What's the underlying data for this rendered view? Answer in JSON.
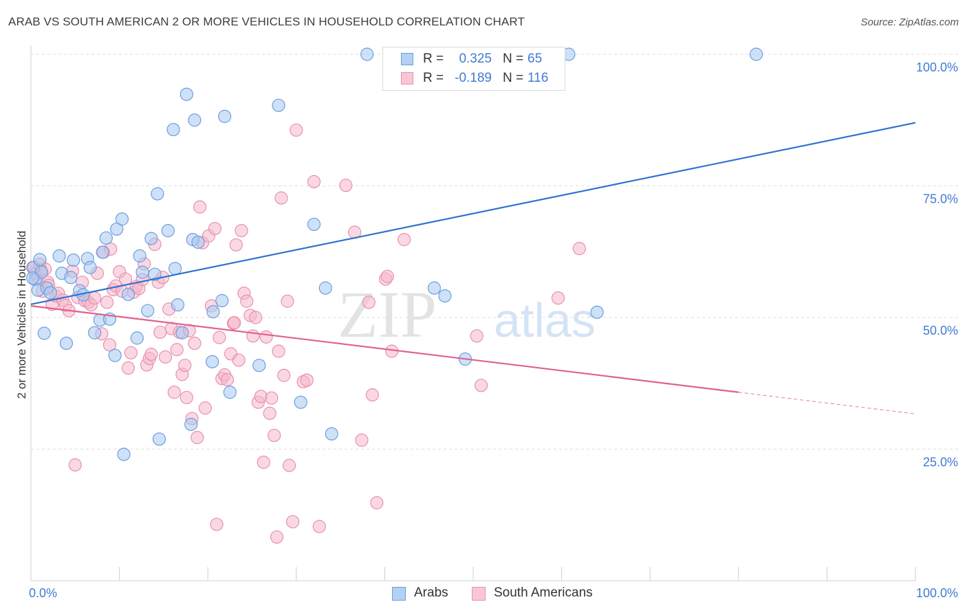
{
  "title": "ARAB VS SOUTH AMERICAN 2 OR MORE VEHICLES IN HOUSEHOLD CORRELATION CHART",
  "source": "Source: ZipAtlas.com",
  "watermark": {
    "zip": "ZIP",
    "atlas": "atlas"
  },
  "legend": {
    "arabs": {
      "r_label": "R =",
      "r_value": "0.325",
      "n_label": "N =",
      "n_value": "65"
    },
    "south_americans": {
      "r_label": "R =",
      "r_value": "-0.189",
      "n_label": "N =",
      "n_value": "116"
    }
  },
  "bottom_legend": {
    "arabs": "Arabs",
    "south_americans": "South Americans"
  },
  "colors": {
    "arabs_fill": "#a8c8f0",
    "arabs_stroke": "#6a9ee0",
    "arabs_line": "#2f72d0",
    "sa_fill": "#f6b8cc",
    "sa_stroke": "#e890ac",
    "sa_line": "#e0608e",
    "axis_text": "#3f7bd0"
  },
  "chart_data": {
    "type": "scatter",
    "title": "ARAB VS SOUTH AMERICAN 2 OR MORE VEHICLES IN HOUSEHOLD CORRELATION CHART",
    "xlabel": "",
    "ylabel": "2 or more Vehicles in Household",
    "xlim": [
      0,
      100
    ],
    "ylim": [
      0,
      100
    ],
    "x_tick_labels": [
      "0.0%",
      "100.0%"
    ],
    "y_tick_labels": [
      "100.0%",
      "75.0%",
      "50.0%",
      "25.0%"
    ],
    "y_ticks": [
      100,
      75,
      50,
      25
    ],
    "grid": true,
    "legend_position": "top-center",
    "series": [
      {
        "name": "Arabs",
        "r": 0.325,
        "n": 65,
        "trend": {
          "x": [
            0,
            100
          ],
          "y": [
            52.5,
            87
          ]
        },
        "points": [
          [
            0.3,
            59.5
          ],
          [
            0.5,
            57.2
          ],
          [
            0.8,
            55.2
          ],
          [
            1.0,
            61.0
          ],
          [
            1.2,
            58.6
          ],
          [
            1.5,
            47.0
          ],
          [
            1.8,
            55.6
          ],
          [
            2.2,
            54.7
          ],
          [
            3.2,
            61.7
          ],
          [
            3.5,
            58.4
          ],
          [
            4.0,
            45.1
          ],
          [
            4.5,
            57.6
          ],
          [
            4.8,
            60.9
          ],
          [
            5.5,
            55.1
          ],
          [
            5.9,
            54.3
          ],
          [
            6.4,
            61.2
          ],
          [
            6.7,
            59.5
          ],
          [
            7.2,
            47.1
          ],
          [
            7.8,
            49.5
          ],
          [
            8.1,
            62.4
          ],
          [
            8.5,
            65.1
          ],
          [
            8.9,
            49.7
          ],
          [
            9.5,
            42.8
          ],
          [
            9.7,
            66.8
          ],
          [
            10.3,
            68.7
          ],
          [
            10.5,
            24.0
          ],
          [
            11.0,
            54.4
          ],
          [
            12.0,
            46.1
          ],
          [
            12.3,
            61.7
          ],
          [
            12.6,
            58.6
          ],
          [
            13.2,
            51.3
          ],
          [
            13.6,
            65.0
          ],
          [
            14.0,
            58.2
          ],
          [
            14.3,
            73.5
          ],
          [
            14.5,
            26.9
          ],
          [
            15.5,
            66.5
          ],
          [
            16.1,
            85.7
          ],
          [
            16.3,
            59.3
          ],
          [
            16.6,
            52.4
          ],
          [
            17.1,
            47.1
          ],
          [
            17.6,
            92.4
          ],
          [
            18.1,
            29.7
          ],
          [
            18.3,
            64.8
          ],
          [
            18.5,
            87.5
          ],
          [
            18.9,
            64.3
          ],
          [
            20.5,
            41.6
          ],
          [
            20.6,
            51.1
          ],
          [
            21.6,
            53.2
          ],
          [
            21.9,
            88.2
          ],
          [
            22.5,
            35.8
          ],
          [
            25.8,
            40.9
          ],
          [
            28.0,
            90.3
          ],
          [
            30.5,
            33.9
          ],
          [
            32.0,
            67.7
          ],
          [
            33.3,
            55.6
          ],
          [
            34.0,
            27.9
          ],
          [
            38.0,
            100.0
          ],
          [
            45.6,
            55.6
          ],
          [
            46.8,
            54.1
          ],
          [
            47.5,
            100.0
          ],
          [
            49.1,
            42.1
          ],
          [
            60.8,
            100.0
          ],
          [
            64.0,
            51.0
          ],
          [
            82.0,
            100.0
          ],
          [
            0.2,
            57.5
          ]
        ]
      },
      {
        "name": "South Americans",
        "r": -0.189,
        "n": 116,
        "trend": {
          "x": [
            0,
            80
          ],
          "y": [
            52.2,
            35.8
          ]
        },
        "trend_dashed": {
          "x": [
            80,
            100
          ],
          "y": [
            35.8,
            31.7
          ]
        },
        "points": [
          [
            0.2,
            59.5
          ],
          [
            0.5,
            58.3
          ],
          [
            0.8,
            57.6
          ],
          [
            1.0,
            60.1
          ],
          [
            1.3,
            55.0
          ],
          [
            1.6,
            59.2
          ],
          [
            1.9,
            56.7
          ],
          [
            2.4,
            52.5
          ],
          [
            2.8,
            54.1
          ],
          [
            3.1,
            54.6
          ],
          [
            3.6,
            53.3
          ],
          [
            3.9,
            52.3
          ],
          [
            4.3,
            51.3
          ],
          [
            4.7,
            58.8
          ],
          [
            5.0,
            22.0
          ],
          [
            5.3,
            53.8
          ],
          [
            5.8,
            56.7
          ],
          [
            6.1,
            53.2
          ],
          [
            6.5,
            52.9
          ],
          [
            6.8,
            52.4
          ],
          [
            7.2,
            53.7
          ],
          [
            7.5,
            58.4
          ],
          [
            8.0,
            46.9
          ],
          [
            8.2,
            62.4
          ],
          [
            8.6,
            52.9
          ],
          [
            8.9,
            44.8
          ],
          [
            9.3,
            55.3
          ],
          [
            9.6,
            56.0
          ],
          [
            10.0,
            58.7
          ],
          [
            10.3,
            55.0
          ],
          [
            10.7,
            57.3
          ],
          [
            11.0,
            40.4
          ],
          [
            11.3,
            43.3
          ],
          [
            11.6,
            54.8
          ],
          [
            11.9,
            55.9
          ],
          [
            12.2,
            55.5
          ],
          [
            12.6,
            57.2
          ],
          [
            12.8,
            60.2
          ],
          [
            13.1,
            41.0
          ],
          [
            13.4,
            42.2
          ],
          [
            13.6,
            43.0
          ],
          [
            14.0,
            63.9
          ],
          [
            14.4,
            56.7
          ],
          [
            14.6,
            47.2
          ],
          [
            14.9,
            57.6
          ],
          [
            15.2,
            42.5
          ],
          [
            15.6,
            51.6
          ],
          [
            15.9,
            47.9
          ],
          [
            16.2,
            35.8
          ],
          [
            16.5,
            43.9
          ],
          [
            16.8,
            47.2
          ],
          [
            17.1,
            39.2
          ],
          [
            17.4,
            40.9
          ],
          [
            17.6,
            34.8
          ],
          [
            17.9,
            47.5
          ],
          [
            18.2,
            30.8
          ],
          [
            18.5,
            45.1
          ],
          [
            18.8,
            27.2
          ],
          [
            19.1,
            71.0
          ],
          [
            19.4,
            64.2
          ],
          [
            19.7,
            32.8
          ],
          [
            20.1,
            65.5
          ],
          [
            20.4,
            52.2
          ],
          [
            20.8,
            66.9
          ],
          [
            21.0,
            10.7
          ],
          [
            21.3,
            46.2
          ],
          [
            21.6,
            38.4
          ],
          [
            21.9,
            39.1
          ],
          [
            22.2,
            38.2
          ],
          [
            22.6,
            43.1
          ],
          [
            22.9,
            48.9
          ],
          [
            23.2,
            63.8
          ],
          [
            23.5,
            41.9
          ],
          [
            23.8,
            66.5
          ],
          [
            24.1,
            54.6
          ],
          [
            24.4,
            53.1
          ],
          [
            24.8,
            50.4
          ],
          [
            25.1,
            46.5
          ],
          [
            25.4,
            50.0
          ],
          [
            25.7,
            33.9
          ],
          [
            26.0,
            35.0
          ],
          [
            26.3,
            22.5
          ],
          [
            26.6,
            46.3
          ],
          [
            27.0,
            31.8
          ],
          [
            27.2,
            34.7
          ],
          [
            27.5,
            27.6
          ],
          [
            27.8,
            8.3
          ],
          [
            28.0,
            43.6
          ],
          [
            28.3,
            72.7
          ],
          [
            28.6,
            39.0
          ],
          [
            29.0,
            53.1
          ],
          [
            29.2,
            21.9
          ],
          [
            29.6,
            11.2
          ],
          [
            30.0,
            85.6
          ],
          [
            30.8,
            37.8
          ],
          [
            31.2,
            38.1
          ],
          [
            32.0,
            75.8
          ],
          [
            32.6,
            10.3
          ],
          [
            35.6,
            75.1
          ],
          [
            36.6,
            66.2
          ],
          [
            37.4,
            26.7
          ],
          [
            38.2,
            52.9
          ],
          [
            38.6,
            35.3
          ],
          [
            39.1,
            14.8
          ],
          [
            40.1,
            57.3
          ],
          [
            40.3,
            57.8
          ],
          [
            40.8,
            43.6
          ],
          [
            42.2,
            64.8
          ],
          [
            50.4,
            46.5
          ],
          [
            50.9,
            37.1
          ],
          [
            59.6,
            53.7
          ],
          [
            62.0,
            63.1
          ],
          [
            1.1,
            59.0
          ],
          [
            2.0,
            56.1
          ],
          [
            9.0,
            63.0
          ],
          [
            23.0,
            49.0
          ]
        ]
      }
    ]
  }
}
